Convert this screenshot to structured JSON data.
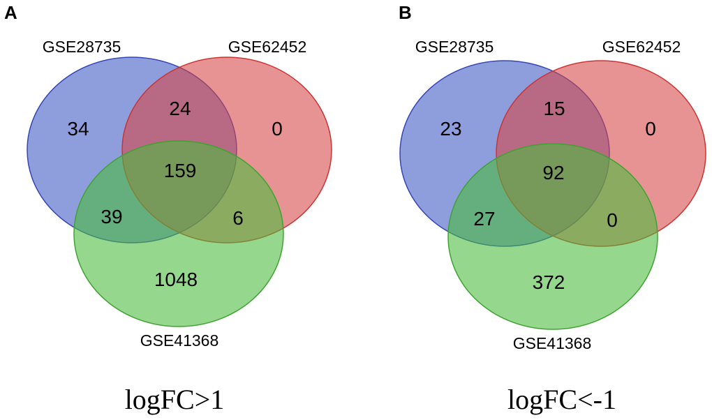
{
  "panels": [
    {
      "letter": "A",
      "sets": {
        "blue": {
          "label": "GSE28735",
          "fill": "#3d56c2",
          "stroke": "#3445b5"
        },
        "red": {
          "label": "GSE62452",
          "fill": "#d84545",
          "stroke": "#cc3333"
        },
        "green": {
          "label": "GSE41368",
          "fill": "#49bb3a",
          "stroke": "#3ea331"
        }
      },
      "counts": {
        "blue_only": "34",
        "blue_red": "24",
        "red_only": "0",
        "all_three": "159",
        "blue_green": "39",
        "red_green": "6",
        "green_only": "1048"
      },
      "caption": "logFC>1"
    },
    {
      "letter": "B",
      "sets": {
        "blue": {
          "label": "GSE28735",
          "fill": "#3d56c2",
          "stroke": "#3445b5"
        },
        "red": {
          "label": "GSE62452",
          "fill": "#d84545",
          "stroke": "#cc3333"
        },
        "green": {
          "label": "GSE41368",
          "fill": "#49bb3a",
          "stroke": "#3ea331"
        }
      },
      "counts": {
        "blue_only": "23",
        "blue_red": "15",
        "red_only": "0",
        "all_three": "92",
        "blue_green": "27",
        "red_green": "0",
        "green_only": "372"
      },
      "caption": "logFC<-1"
    }
  ]
}
